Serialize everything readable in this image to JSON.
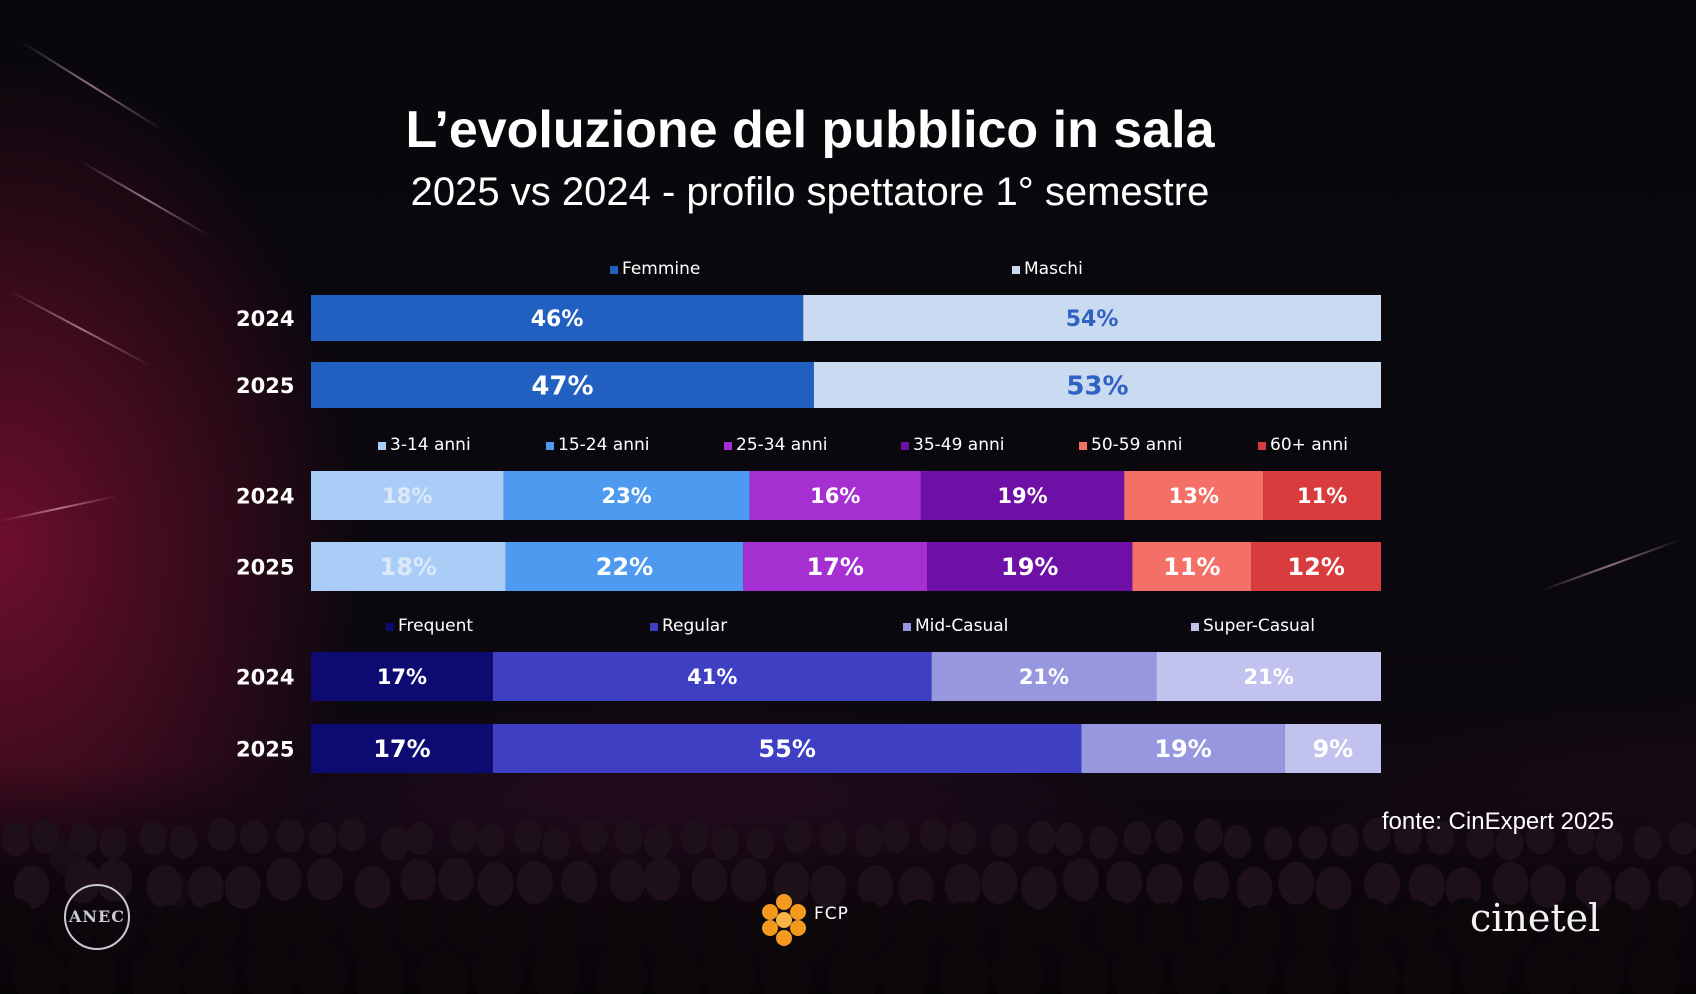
{
  "title": "L’evoluzione del pubblico in sala",
  "subtitle": "2025 vs 2024 - profilo spettatore 1° semestre",
  "source": "fonte: CinExpert 2025",
  "logos": {
    "anec": "ANEC",
    "fcp": "FCP",
    "cinetel": "cinetel"
  },
  "chart_data": [
    {
      "type": "bar",
      "orientation": "horizontal-stacked-100",
      "categories": [
        "2024",
        "2025"
      ],
      "series": [
        {
          "name": "Femmine",
          "values": [
            46,
            47
          ],
          "labels": [
            "46%",
            "47%"
          ],
          "color": "#2160c0",
          "label_color": "#ffffff"
        },
        {
          "name": "Maschi",
          "values": [
            54,
            53
          ],
          "labels": [
            "54%",
            "53%"
          ],
          "color": "#c9daf1",
          "label_color": "#2f62c2"
        }
      ]
    },
    {
      "type": "bar",
      "orientation": "horizontal-stacked-100",
      "categories": [
        "2024",
        "2025"
      ],
      "series": [
        {
          "name": "3-14 anni",
          "values": [
            18,
            18
          ],
          "labels": [
            "18%",
            "18%"
          ],
          "color": "#a9cdf7",
          "label_color": "#dce9f8"
        },
        {
          "name": "15-24 anni",
          "values": [
            23,
            22
          ],
          "labels": [
            "23%",
            "22%"
          ],
          "color": "#4d9af0",
          "label_color": "#ffffff"
        },
        {
          "name": "25-34 anni",
          "values": [
            16,
            17
          ],
          "labels": [
            "16%",
            "17%"
          ],
          "color": "#a52fd0",
          "label_color": "#ffffff"
        },
        {
          "name": "35-49 anni",
          "values": [
            19,
            19
          ],
          "labels": [
            "19%",
            "19%"
          ],
          "color": "#6e10a6",
          "label_color": "#ffffff"
        },
        {
          "name": "50-59 anni",
          "values": [
            13,
            11
          ],
          "labels": [
            "13%",
            "11%"
          ],
          "color": "#f46f66",
          "label_color": "#ffffff"
        },
        {
          "name": "60+ anni",
          "values": [
            11,
            12
          ],
          "labels": [
            "11%",
            "12%"
          ],
          "color": "#d93c3c",
          "label_color": "#ffffff"
        }
      ]
    },
    {
      "type": "bar",
      "orientation": "horizontal-stacked-100",
      "categories": [
        "2024",
        "2025"
      ],
      "series": [
        {
          "name": "Frequent",
          "values": [
            17,
            17
          ],
          "labels": [
            "17%",
            "17%"
          ],
          "color": "#0d0b72",
          "label_color": "#ffffff"
        },
        {
          "name": "Regular",
          "values": [
            41,
            55
          ],
          "labels": [
            "41%",
            "55%"
          ],
          "color": "#3f3fc4",
          "label_color": "#ffffff"
        },
        {
          "name": "Mid-Casual",
          "values": [
            21,
            19
          ],
          "labels": [
            "21%",
            "19%"
          ],
          "color": "#9797e0",
          "label_color": "#ffffff"
        },
        {
          "name": "Super-Casual",
          "values": [
            21,
            9
          ],
          "labels": [
            "21%",
            "9%"
          ],
          "color": "#c2c2ee",
          "label_color": "#ffffff"
        }
      ]
    }
  ]
}
